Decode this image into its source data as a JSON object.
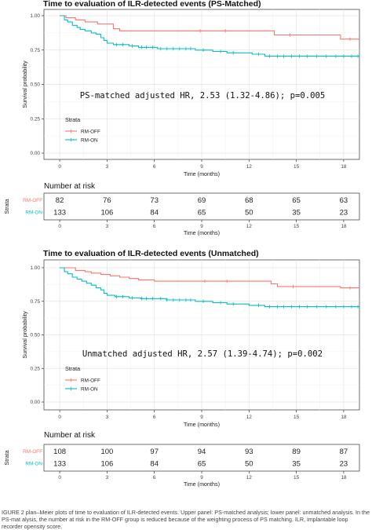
{
  "chart_data": [
    {
      "type": "line",
      "title": "Time to evaluation of ILR-detected events (PS-Matched)",
      "xlabel": "Time (months)",
      "ylabel": "Survival probability",
      "xlim": [
        -1,
        19
      ],
      "ylim": [
        0,
        1
      ],
      "x_ticks": [
        0,
        3,
        6,
        9,
        12,
        15,
        18
      ],
      "y_ticks": [
        "0.00",
        "0.25",
        "0.50",
        "0.75",
        "1.00"
      ],
      "annotation": "PS-matched adjusted HR, 2.53 (1.32-4.86); p=0.005",
      "legend": {
        "title": "Strata",
        "position": "left-inside"
      },
      "grid": true,
      "series": [
        {
          "name": "RM-OFF",
          "color": "#f8766d",
          "steps": [
            [
              0,
              1.0
            ],
            [
              0.4,
              0.985
            ],
            [
              1.0,
              0.97
            ],
            [
              1.6,
              0.955
            ],
            [
              2.4,
              0.94
            ],
            [
              3.4,
              0.905
            ],
            [
              3.8,
              0.89
            ],
            [
              13.6,
              0.86
            ],
            [
              17.8,
              0.83
            ],
            [
              19,
              0.83
            ]
          ],
          "censor_x": [
            8.9,
            10.5,
            14.6,
            18.4
          ]
        },
        {
          "name": "RM-ON",
          "color": "#00bfc4",
          "steps": [
            [
              0,
              1.0
            ],
            [
              0.3,
              0.97
            ],
            [
              0.5,
              0.955
            ],
            [
              0.8,
              0.93
            ],
            [
              1.1,
              0.915
            ],
            [
              1.3,
              0.9
            ],
            [
              1.6,
              0.89
            ],
            [
              2.0,
              0.875
            ],
            [
              2.3,
              0.865
            ],
            [
              2.6,
              0.84
            ],
            [
              2.8,
              0.82
            ],
            [
              3.0,
              0.8
            ],
            [
              3.4,
              0.79
            ],
            [
              4.4,
              0.78
            ],
            [
              5.0,
              0.77
            ],
            [
              6.2,
              0.76
            ],
            [
              8.6,
              0.75
            ],
            [
              9.7,
              0.74
            ],
            [
              10.6,
              0.73
            ],
            [
              12.2,
              0.72
            ],
            [
              13.0,
              0.705
            ],
            [
              19,
              0.705
            ]
          ],
          "censor_x": [
            3.6,
            4.0,
            4.6,
            5.2,
            5.5,
            5.9,
            6.4,
            6.8,
            7.2,
            7.6,
            8.0,
            8.3,
            9.1,
            10.2,
            11.0,
            12.6,
            13.3,
            13.8,
            14.2,
            14.7,
            15.2,
            15.7,
            16.3,
            16.9,
            17.5,
            18.0,
            18.5,
            18.9
          ]
        }
      ]
    },
    {
      "type": "table",
      "title": "Number at risk",
      "row_axis_label": "Strata",
      "xlabel": "Time (months)",
      "columns": [
        0,
        3,
        6,
        9,
        12,
        15,
        18
      ],
      "rows": [
        {
          "name": "RM-OFF",
          "color": "#f8766d",
          "values": [
            82,
            76,
            73,
            69,
            68,
            65,
            63
          ]
        },
        {
          "name": "RM-ON",
          "color": "#00bfc4",
          "values": [
            133,
            106,
            84,
            65,
            50,
            35,
            23
          ]
        }
      ]
    },
    {
      "type": "line",
      "title": "Time to evaluation of ILR-detected events (Unmatched)",
      "xlabel": "Time (months)",
      "ylabel": "Survival probability",
      "xlim": [
        -1,
        19
      ],
      "ylim": [
        0,
        1
      ],
      "x_ticks": [
        0,
        3,
        6,
        9,
        12,
        15,
        18
      ],
      "y_ticks": [
        "0.00",
        "0.25",
        "0.50",
        "0.75",
        "1.00"
      ],
      "annotation": "Unmatched adjusted HR, 2.57 (1.39-4.74); p=0.002",
      "legend": {
        "title": "Strata",
        "position": "left-inside"
      },
      "grid": true,
      "series": [
        {
          "name": "RM-OFF",
          "color": "#f8766d",
          "steps": [
            [
              0,
              1.0
            ],
            [
              1.0,
              0.98
            ],
            [
              1.6,
              0.97
            ],
            [
              2.0,
              0.96
            ],
            [
              2.6,
              0.95
            ],
            [
              3.2,
              0.94
            ],
            [
              3.8,
              0.93
            ],
            [
              4.4,
              0.92
            ],
            [
              5.0,
              0.91
            ],
            [
              6.0,
              0.9
            ],
            [
              13.4,
              0.88
            ],
            [
              13.8,
              0.86
            ],
            [
              17.8,
              0.85
            ],
            [
              19,
              0.85
            ]
          ],
          "censor_x": [
            9.2,
            10.6,
            14.8,
            18.4
          ]
        },
        {
          "name": "RM-ON",
          "color": "#00bfc4",
          "steps": [
            [
              0,
              1.0
            ],
            [
              0.3,
              0.97
            ],
            [
              0.5,
              0.955
            ],
            [
              0.8,
              0.93
            ],
            [
              1.1,
              0.915
            ],
            [
              1.4,
              0.9
            ],
            [
              1.7,
              0.885
            ],
            [
              2.0,
              0.87
            ],
            [
              2.3,
              0.85
            ],
            [
              2.6,
              0.835
            ],
            [
              2.8,
              0.81
            ],
            [
              3.0,
              0.795
            ],
            [
              3.5,
              0.785
            ],
            [
              4.4,
              0.775
            ],
            [
              5.2,
              0.77
            ],
            [
              6.8,
              0.76
            ],
            [
              8.6,
              0.75
            ],
            [
              9.7,
              0.74
            ],
            [
              10.6,
              0.73
            ],
            [
              12.0,
              0.72
            ],
            [
              13.0,
              0.71
            ],
            [
              19,
              0.71
            ]
          ],
          "censor_x": [
            3.6,
            4.0,
            4.6,
            5.2,
            5.5,
            5.9,
            6.4,
            6.8,
            7.2,
            7.6,
            8.0,
            8.3,
            9.1,
            10.2,
            11.0,
            12.6,
            13.3,
            13.8,
            14.2,
            14.7,
            15.2,
            15.7,
            16.3,
            16.9,
            17.5,
            18.0,
            18.5,
            18.9
          ]
        }
      ]
    },
    {
      "type": "table",
      "title": "Number at risk",
      "row_axis_label": "Strata",
      "xlabel": "Time (months)",
      "columns": [
        0,
        3,
        6,
        9,
        12,
        15,
        18
      ],
      "rows": [
        {
          "name": "RM-OFF",
          "color": "#f8766d",
          "values": [
            108,
            100,
            97,
            94,
            93,
            89,
            87
          ]
        },
        {
          "name": "RM-ON",
          "color": "#00bfc4",
          "values": [
            133,
            106,
            84,
            65,
            50,
            35,
            23
          ]
        }
      ]
    }
  ],
  "caption": "IGURE 2 plan–Meier plots of time to evaluation of ILR-detected events. Upper panel: PS-matched analysis; lower panel: unmatched analysis. In the PS-mat alysis, the number at risk in the RM-OFF group is reduced because of the weighting process of PS matching. ILR, implantable loop recorder opensity score."
}
